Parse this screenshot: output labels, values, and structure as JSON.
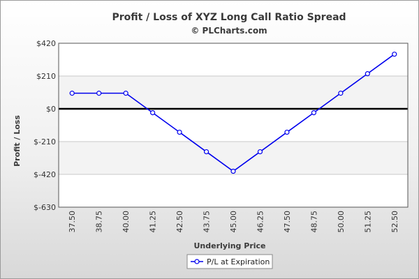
{
  "chart_data": {
    "type": "line",
    "title": "Profit / Loss of XYZ Long Call Ratio Spread",
    "subtitle": "© PLCharts.com",
    "xlabel": "Underlying Price",
    "ylabel": "Profit / Loss",
    "categories": [
      "37.50",
      "38.75",
      "40.00",
      "41.25",
      "42.50",
      "43.75",
      "45.00",
      "46.25",
      "47.50",
      "48.75",
      "50.00",
      "51.25",
      "52.50"
    ],
    "y_ticks": [
      420,
      210,
      0,
      -210,
      -420,
      -630
    ],
    "y_tick_labels": [
      "$420",
      "$210",
      "$0",
      "$-210",
      "$-420",
      "$-630"
    ],
    "ylim": [
      -630,
      420
    ],
    "grid": true,
    "legend_position": "bottom-center",
    "series": [
      {
        "name": "P/L at Expiration",
        "color": "#0000ee",
        "values": [
          100,
          100,
          100,
          -25,
          -150,
          -275,
          -400,
          -275,
          -150,
          -25,
          100,
          225,
          350
        ]
      }
    ]
  },
  "colors": {
    "band_light": "#ffffff",
    "band_shade": "#f3f3f3",
    "zero_line": "#000000",
    "grid": "#c8c8c8"
  }
}
